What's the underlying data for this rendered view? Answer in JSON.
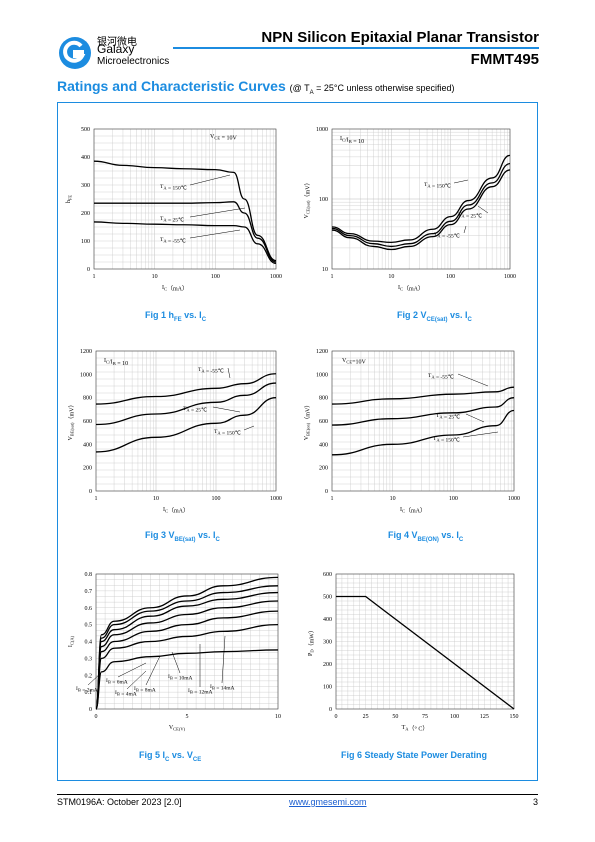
{
  "header": {
    "brand_cn": "银河微电",
    "brand_en_line1": "Galaxy",
    "brand_en_line2": "Microelectronics",
    "title": "NPN Silicon Epitaxial Planar Transistor",
    "part_number": "FMMT495",
    "accent_color": "#1c8ce0"
  },
  "section": {
    "title": "Ratings and Characteristic Curves",
    "note_prefix": "(@ T",
    "note_sub": "A",
    "note_suffix": " = 25°C unless otherwise specified)"
  },
  "captions": {
    "fig1": {
      "prefix": "Fig 1    h",
      "sub": "FE",
      "suffix": " vs. I",
      "sub2": "C"
    },
    "fig2": {
      "prefix": "Fig 2    V",
      "sub": "CE(sat)",
      "suffix": " vs. I",
      "sub2": "C"
    },
    "fig3": {
      "prefix": "Fig 3    V",
      "sub": "BE(sat)",
      "suffix": " vs. I",
      "sub2": "C"
    },
    "fig4": {
      "prefix": "Fig 4    V",
      "sub": "BE(ON)",
      "suffix": " vs. I",
      "sub2": "C"
    },
    "fig5": {
      "prefix": "Fig 5    I",
      "sub": "C",
      "suffix": " vs. V",
      "sub2": "CE"
    },
    "fig6": {
      "prefix": "Fig 6    Steady State Power Derating",
      "sub": "",
      "suffix": "",
      "sub2": ""
    }
  },
  "footer": {
    "left": "STM0196A: October 2023 [2.0]",
    "center": "www.gmesemi.com",
    "right": "3"
  },
  "chart_data": [
    {
      "id": "fig1",
      "type": "line",
      "x_scale": "log",
      "xlim": [
        1,
        1000
      ],
      "ylim": [
        0,
        500
      ],
      "xticks": [
        "1",
        "10",
        "100",
        "1000"
      ],
      "yticks": [
        "0",
        "100",
        "200",
        "300",
        "400",
        "500"
      ],
      "xlabel": "I_C（mA）",
      "ylabel": "h_FE",
      "condition": "V_CE = 10V",
      "series": [
        {
          "name": "T_A = 150℃",
          "x": [
            1,
            3,
            10,
            30,
            100,
            200,
            300,
            500,
            1000
          ],
          "y": [
            385,
            370,
            362,
            358,
            355,
            345,
            250,
            120,
            30
          ]
        },
        {
          "name": "T_A = 25℃",
          "x": [
            1,
            3,
            10,
            30,
            100,
            200,
            300,
            500,
            1000
          ],
          "y": [
            235,
            235,
            235,
            235,
            237,
            240,
            200,
            110,
            25
          ]
        },
        {
          "name": "T_A = -55℃",
          "x": [
            1,
            3,
            10,
            30,
            100,
            200,
            300,
            500,
            1000
          ],
          "y": [
            168,
            163,
            160,
            158,
            155,
            155,
            150,
            90,
            20
          ]
        }
      ],
      "annotations": [
        {
          "text": "T_A = 150℃",
          "points_to": "T_A = 150℃"
        },
        {
          "text": "T_A = 25℃",
          "points_to": "T_A = 25℃"
        },
        {
          "text": "T_A = -55℃",
          "points_to": "T_A = -55℃"
        }
      ]
    },
    {
      "id": "fig2",
      "type": "line",
      "x_scale": "log",
      "y_scale": "log",
      "xlim": [
        1,
        1000
      ],
      "ylim": [
        10,
        1000
      ],
      "xticks": [
        "1",
        "10",
        "100",
        "1000"
      ],
      "yticks": [
        "10",
        "100",
        "1000"
      ],
      "xlabel": "I_C（mA）",
      "ylabel": "V_CE(sat)（mV）",
      "condition": "I_C/I_B = 10",
      "series": [
        {
          "name": "T_A = 150℃",
          "x": [
            1,
            2,
            5,
            10,
            20,
            50,
            100,
            200,
            500,
            1000
          ],
          "y": [
            40,
            32,
            25,
            24,
            26,
            37,
            56,
            95,
            200,
            420
          ]
        },
        {
          "name": "T_A = 25℃",
          "x": [
            1,
            2,
            5,
            10,
            20,
            50,
            100,
            200,
            500,
            1000
          ],
          "y": [
            38,
            30,
            23,
            21,
            23,
            32,
            48,
            82,
            170,
            320
          ]
        },
        {
          "name": "T_A = -55℃",
          "x": [
            1,
            2,
            5,
            10,
            20,
            50,
            100,
            200,
            500,
            1000
          ],
          "y": [
            36,
            28,
            21,
            19,
            21,
            29,
            43,
            72,
            150,
            260
          ]
        }
      ],
      "annotations": [
        {
          "text": "T_A = 150℃",
          "points_to": "T_A = 150℃"
        },
        {
          "text": "T_A = 25℃",
          "points_to": "T_A = 25℃"
        },
        {
          "text": "T_A = -55℃",
          "points_to": "T_A = -55℃"
        }
      ]
    },
    {
      "id": "fig3",
      "type": "line",
      "x_scale": "log",
      "xlim": [
        1,
        1000
      ],
      "ylim": [
        0,
        1200
      ],
      "xticks": [
        "1",
        "10",
        "100",
        "1000"
      ],
      "yticks": [
        "0",
        "200",
        "400",
        "600",
        "800",
        "1000",
        "1200"
      ],
      "xlabel": "I_C（mA）",
      "ylabel": "V_BE(sat)（mV）",
      "condition": "I_C/I_B = 10",
      "series": [
        {
          "name": "T_A = -55℃",
          "x": [
            1,
            10,
            100,
            300,
            1000
          ],
          "y": [
            745,
            810,
            880,
            920,
            1005
          ]
        },
        {
          "name": "T_A = 25℃",
          "x": [
            1,
            10,
            100,
            300,
            1000
          ],
          "y": [
            570,
            660,
            760,
            820,
            925
          ]
        },
        {
          "name": "T_A = 150℃",
          "x": [
            1,
            10,
            100,
            300,
            1000
          ],
          "y": [
            335,
            460,
            580,
            650,
            800
          ]
        }
      ],
      "annotations": [
        {
          "text": "T_A = -55℃",
          "points_to": "T_A = -55℃"
        },
        {
          "text": "T_A = 25℃",
          "points_to": "T_A = 25℃"
        },
        {
          "text": "T_A = 150℃",
          "points_to": "T_A = 150℃"
        }
      ]
    },
    {
      "id": "fig4",
      "type": "line",
      "x_scale": "log",
      "xlim": [
        1,
        1000
      ],
      "ylim": [
        0,
        1200
      ],
      "xticks": [
        "1",
        "10",
        "100",
        "1000"
      ],
      "yticks": [
        "0",
        "200",
        "400",
        "600",
        "800",
        "1000",
        "1200"
      ],
      "xlabel": "I_C（mA）",
      "ylabel": "V_BE(on)（mV）",
      "condition": "V_CE=10V",
      "series": [
        {
          "name": "T_A = -55℃",
          "x": [
            1,
            10,
            100,
            500,
            1000
          ],
          "y": [
            745,
            790,
            830,
            850,
            890
          ]
        },
        {
          "name": "T_A = 25℃",
          "x": [
            1,
            10,
            100,
            500,
            1000
          ],
          "y": [
            565,
            620,
            670,
            720,
            800
          ]
        },
        {
          "name": "T_A = 150℃",
          "x": [
            1,
            10,
            100,
            500,
            1000
          ],
          "y": [
            310,
            400,
            480,
            560,
            690
          ]
        }
      ],
      "annotations": [
        {
          "text": "T_A = -55℃",
          "points_to": "T_A = -55℃"
        },
        {
          "text": "T_A = 25℃",
          "points_to": "T_A = 25℃"
        },
        {
          "text": "T_A = 150℃",
          "points_to": "T_A = 150℃"
        }
      ]
    },
    {
      "id": "fig5",
      "type": "line",
      "xlim": [
        0,
        10
      ],
      "ylim": [
        0,
        0.8
      ],
      "xticks": [
        "0",
        "5",
        "10"
      ],
      "yticks": [
        "0",
        "0.1",
        "0.2",
        "0.3",
        "0.4",
        "0.5",
        "0.6",
        "0.7",
        "0.8"
      ],
      "xlabel": "V_CE(V)",
      "ylabel": "I_C(A)",
      "series": [
        {
          "name": "I_B = 2mA",
          "x": [
            0,
            0.3,
            1,
            3,
            5,
            7,
            10
          ],
          "y": [
            0,
            0.22,
            0.28,
            0.31,
            0.33,
            0.34,
            0.35
          ]
        },
        {
          "name": "I_B = 4mA",
          "x": [
            0,
            0.3,
            1,
            3,
            5,
            7,
            10
          ],
          "y": [
            0,
            0.3,
            0.36,
            0.4,
            0.43,
            0.46,
            0.5
          ]
        },
        {
          "name": "I_B = 6mA",
          "x": [
            0,
            0.3,
            1,
            3,
            5,
            7,
            10
          ],
          "y": [
            0,
            0.34,
            0.4,
            0.46,
            0.5,
            0.54,
            0.58
          ]
        },
        {
          "name": "I_B = 8mA",
          "x": [
            0,
            0.3,
            1,
            3,
            5,
            7,
            10
          ],
          "y": [
            0,
            0.37,
            0.44,
            0.51,
            0.56,
            0.6,
            0.64
          ]
        },
        {
          "name": "I_B = 10mA",
          "x": [
            0,
            0.3,
            1,
            3,
            5,
            7,
            10
          ],
          "y": [
            0,
            0.4,
            0.47,
            0.55,
            0.61,
            0.65,
            0.69
          ]
        },
        {
          "name": "I_B = 12mA",
          "x": [
            0,
            0.3,
            1,
            3,
            5,
            7,
            10
          ],
          "y": [
            0,
            0.42,
            0.5,
            0.58,
            0.64,
            0.69,
            0.73
          ]
        },
        {
          "name": "I_B = 14mA",
          "x": [
            0,
            0.3,
            1,
            3,
            5,
            7,
            10
          ],
          "y": [
            0,
            0.44,
            0.52,
            0.6,
            0.67,
            0.73,
            0.78
          ]
        }
      ],
      "annotations": [
        {
          "text": "I_B = 2mA",
          "points_to": "I_B = 2mA"
        },
        {
          "text": "I_B = 4mA",
          "points_to": "I_B = 4mA"
        },
        {
          "text": "I_B = 6mA",
          "points_to": "I_B = 6mA"
        },
        {
          "text": "I_B = 8mA",
          "points_to": "I_B = 8mA"
        },
        {
          "text": "I_B = 10mA",
          "points_to": "I_B = 10mA"
        },
        {
          "text": "I_B = 12mA",
          "points_to": "I_B = 12mA"
        },
        {
          "text": "I_B = 14mA",
          "points_to": "I_B = 14mA"
        }
      ]
    },
    {
      "id": "fig6",
      "type": "line",
      "xlim": [
        0,
        150
      ],
      "ylim": [
        0,
        600
      ],
      "xticks": [
        "0",
        "25",
        "50",
        "75",
        "100",
        "125",
        "150"
      ],
      "yticks": [
        "0",
        "100",
        "200",
        "300",
        "400",
        "500",
        "600"
      ],
      "xlabel": "T_A（° C）",
      "ylabel": "P_D（mW）",
      "series": [
        {
          "name": "",
          "x": [
            0,
            25,
            150
          ],
          "y": [
            500,
            500,
            0
          ]
        }
      ]
    }
  ]
}
